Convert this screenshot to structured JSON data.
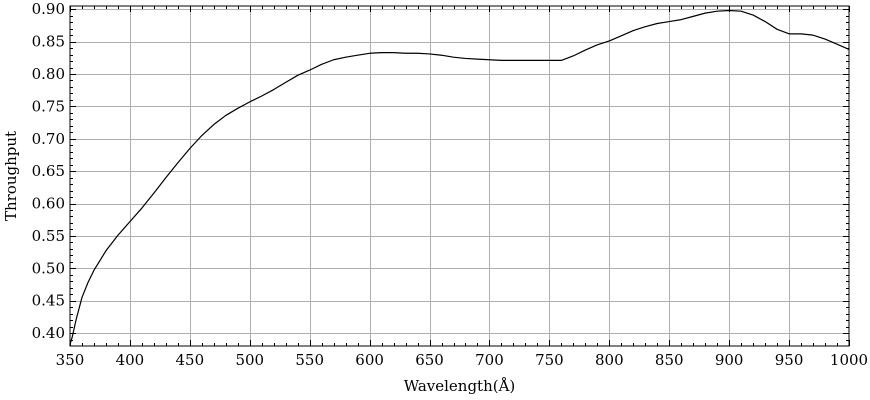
{
  "chart_data": {
    "type": "line",
    "title": "",
    "xlabel": "Wavelength(Å)",
    "ylabel": "Throughput",
    "xlim": [
      350,
      1000
    ],
    "ylim": [
      0.38,
      0.905
    ],
    "x_ticks": [
      350,
      400,
      450,
      500,
      550,
      600,
      650,
      700,
      750,
      800,
      850,
      900,
      950,
      1000
    ],
    "x_tick_labels": [
      "350",
      "400",
      "450",
      "500",
      "550",
      "600",
      "650",
      "700",
      "750",
      "800",
      "850",
      "900",
      "950",
      "1000"
    ],
    "y_ticks": [
      0.4,
      0.45,
      0.5,
      0.55,
      0.6,
      0.65,
      0.7,
      0.75,
      0.8,
      0.85,
      0.9
    ],
    "y_tick_labels": [
      "0.40",
      "0.45",
      "0.50",
      "0.55",
      "0.60",
      "0.65",
      "0.70",
      "0.75",
      "0.80",
      "0.85",
      "0.90"
    ],
    "grid": true,
    "line_color": "#000000",
    "grid_color": "#b0b0b0",
    "series": [
      {
        "x": [
          350,
          352,
          355,
          360,
          365,
          370,
          375,
          380,
          390,
          400,
          410,
          420,
          430,
          440,
          450,
          460,
          470,
          480,
          490,
          500,
          510,
          520,
          530,
          540,
          550,
          560,
          570,
          580,
          590,
          600,
          610,
          620,
          630,
          640,
          650,
          660,
          670,
          680,
          690,
          700,
          710,
          720,
          730,
          740,
          750,
          760,
          770,
          780,
          790,
          800,
          810,
          820,
          830,
          840,
          850,
          860,
          870,
          880,
          890,
          900,
          910,
          920,
          930,
          940,
          950,
          960,
          970,
          980,
          990,
          1000
        ],
        "y": [
          0.382,
          0.395,
          0.42,
          0.455,
          0.478,
          0.497,
          0.512,
          0.527,
          0.551,
          0.572,
          0.593,
          0.616,
          0.64,
          0.663,
          0.685,
          0.705,
          0.722,
          0.736,
          0.747,
          0.757,
          0.766,
          0.776,
          0.787,
          0.798,
          0.806,
          0.815,
          0.822,
          0.826,
          0.829,
          0.832,
          0.833,
          0.833,
          0.832,
          0.832,
          0.831,
          0.829,
          0.826,
          0.824,
          0.823,
          0.822,
          0.821,
          0.821,
          0.821,
          0.821,
          0.821,
          0.821,
          0.828,
          0.837,
          0.845,
          0.851,
          0.859,
          0.867,
          0.873,
          0.878,
          0.881,
          0.884,
          0.889,
          0.894,
          0.897,
          0.898,
          0.897,
          0.891,
          0.881,
          0.869,
          0.862,
          0.862,
          0.86,
          0.854,
          0.846,
          0.838
        ]
      }
    ]
  }
}
